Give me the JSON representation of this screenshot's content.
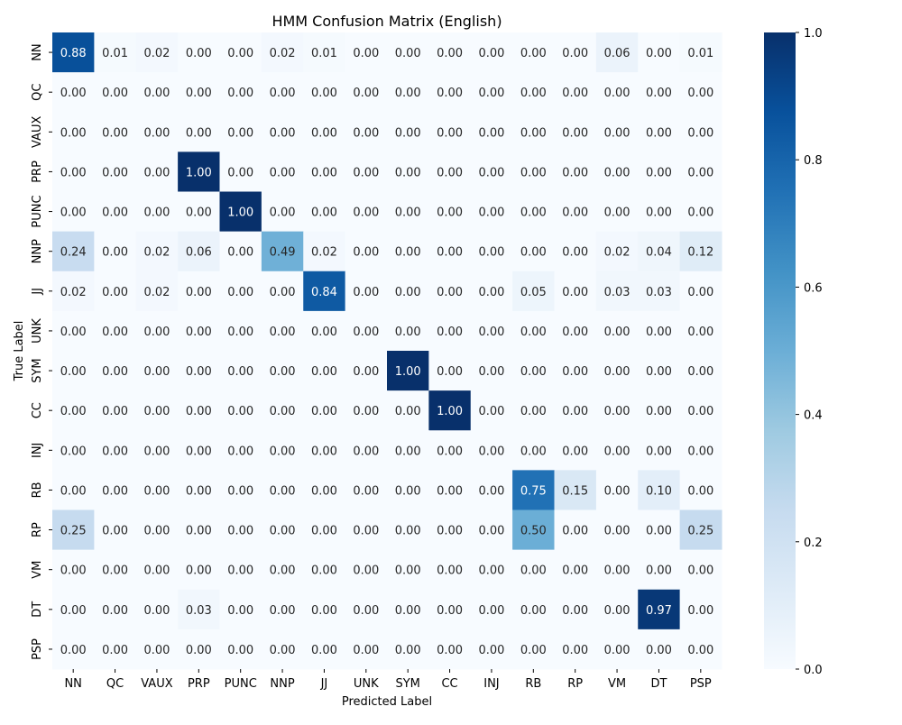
{
  "chart_data": {
    "type": "heatmap",
    "title": "HMM Confusion Matrix (English)",
    "xlabel": "Predicted Label",
    "ylabel": "True Label",
    "x_categories": [
      "NN",
      "QC",
      "VAUX",
      "PRP",
      "PUNC",
      "NNP",
      "JJ",
      "UNK",
      "SYM",
      "CC",
      "INJ",
      "RB",
      "RP",
      "VM",
      "DT",
      "PSP"
    ],
    "y_categories": [
      "NN",
      "QC",
      "VAUX",
      "PRP",
      "PUNC",
      "NNP",
      "JJ",
      "UNK",
      "SYM",
      "CC",
      "INJ",
      "RB",
      "RP",
      "VM",
      "DT",
      "PSP"
    ],
    "values": [
      [
        0.88,
        0.01,
        0.02,
        0.0,
        0.0,
        0.02,
        0.01,
        0.0,
        0.0,
        0.0,
        0.0,
        0.0,
        0.0,
        0.06,
        0.0,
        0.01
      ],
      [
        0.0,
        0.0,
        0.0,
        0.0,
        0.0,
        0.0,
        0.0,
        0.0,
        0.0,
        0.0,
        0.0,
        0.0,
        0.0,
        0.0,
        0.0,
        0.0
      ],
      [
        0.0,
        0.0,
        0.0,
        0.0,
        0.0,
        0.0,
        0.0,
        0.0,
        0.0,
        0.0,
        0.0,
        0.0,
        0.0,
        0.0,
        0.0,
        0.0
      ],
      [
        0.0,
        0.0,
        0.0,
        1.0,
        0.0,
        0.0,
        0.0,
        0.0,
        0.0,
        0.0,
        0.0,
        0.0,
        0.0,
        0.0,
        0.0,
        0.0
      ],
      [
        0.0,
        0.0,
        0.0,
        0.0,
        1.0,
        0.0,
        0.0,
        0.0,
        0.0,
        0.0,
        0.0,
        0.0,
        0.0,
        0.0,
        0.0,
        0.0
      ],
      [
        0.24,
        0.0,
        0.02,
        0.06,
        0.0,
        0.49,
        0.02,
        0.0,
        0.0,
        0.0,
        0.0,
        0.0,
        0.0,
        0.02,
        0.04,
        0.12
      ],
      [
        0.02,
        0.0,
        0.02,
        0.0,
        0.0,
        0.0,
        0.84,
        0.0,
        0.0,
        0.0,
        0.0,
        0.05,
        0.0,
        0.03,
        0.03,
        0.0
      ],
      [
        0.0,
        0.0,
        0.0,
        0.0,
        0.0,
        0.0,
        0.0,
        0.0,
        0.0,
        0.0,
        0.0,
        0.0,
        0.0,
        0.0,
        0.0,
        0.0
      ],
      [
        0.0,
        0.0,
        0.0,
        0.0,
        0.0,
        0.0,
        0.0,
        0.0,
        1.0,
        0.0,
        0.0,
        0.0,
        0.0,
        0.0,
        0.0,
        0.0
      ],
      [
        0.0,
        0.0,
        0.0,
        0.0,
        0.0,
        0.0,
        0.0,
        0.0,
        0.0,
        1.0,
        0.0,
        0.0,
        0.0,
        0.0,
        0.0,
        0.0
      ],
      [
        0.0,
        0.0,
        0.0,
        0.0,
        0.0,
        0.0,
        0.0,
        0.0,
        0.0,
        0.0,
        0.0,
        0.0,
        0.0,
        0.0,
        0.0,
        0.0
      ],
      [
        0.0,
        0.0,
        0.0,
        0.0,
        0.0,
        0.0,
        0.0,
        0.0,
        0.0,
        0.0,
        0.0,
        0.75,
        0.15,
        0.0,
        0.1,
        0.0
      ],
      [
        0.25,
        0.0,
        0.0,
        0.0,
        0.0,
        0.0,
        0.0,
        0.0,
        0.0,
        0.0,
        0.0,
        0.5,
        0.0,
        0.0,
        0.0,
        0.25
      ],
      [
        0.0,
        0.0,
        0.0,
        0.0,
        0.0,
        0.0,
        0.0,
        0.0,
        0.0,
        0.0,
        0.0,
        0.0,
        0.0,
        0.0,
        0.0,
        0.0
      ],
      [
        0.0,
        0.0,
        0.0,
        0.03,
        0.0,
        0.0,
        0.0,
        0.0,
        0.0,
        0.0,
        0.0,
        0.0,
        0.0,
        0.0,
        0.97,
        0.0
      ],
      [
        0.0,
        0.0,
        0.0,
        0.0,
        0.0,
        0.0,
        0.0,
        0.0,
        0.0,
        0.0,
        0.0,
        0.0,
        0.0,
        0.0,
        0.0,
        0.0
      ]
    ],
    "value_format": "0.00",
    "colormap": "Blues",
    "colormap_stops": [
      "#f7fbff",
      "#deebf7",
      "#c6dbef",
      "#9ecae1",
      "#6baed6",
      "#4292c6",
      "#2171b5",
      "#08519c",
      "#08306b"
    ],
    "vmin": 0.0,
    "vmax": 1.0,
    "colorbar_ticks": [
      "0.0",
      "0.2",
      "0.4",
      "0.6",
      "0.8",
      "1.0"
    ],
    "grid": false,
    "legend": "colorbar-right"
  }
}
